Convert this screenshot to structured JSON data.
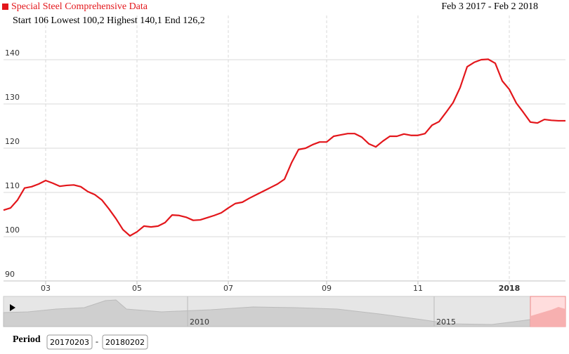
{
  "chart_data": {
    "type": "line",
    "title": "Special Steel Comprehensive Data",
    "date_range": "Feb 3 2017 - Feb 2 2018",
    "subtitle": "Start 106 Lowest 100,2 Highest 140,1 End 126,2",
    "categories": [
      null,
      null,
      null,
      null,
      null,
      null,
      "03",
      null,
      null,
      null,
      null,
      null,
      null,
      null,
      null,
      null,
      null,
      null,
      null,
      "05",
      null,
      null,
      null,
      null,
      null,
      null,
      null,
      null,
      null,
      null,
      null,
      null,
      "07",
      null,
      null,
      null,
      null,
      null,
      null,
      null,
      null,
      null,
      null,
      null,
      null,
      null,
      "09",
      null,
      null,
      null,
      null,
      null,
      null,
      null,
      null,
      null,
      null,
      null,
      null,
      "11",
      null,
      null,
      null,
      null,
      null,
      null,
      null,
      null,
      null,
      null,
      null,
      null,
      "2018",
      null,
      null,
      null,
      null,
      null,
      null,
      null,
      null
    ],
    "values": [
      106.0,
      106.5,
      108.3,
      111.0,
      111.3,
      111.9,
      112.7,
      112.1,
      111.4,
      111.6,
      111.7,
      111.3,
      110.2,
      109.5,
      108.3,
      106.3,
      104.1,
      101.6,
      100.2,
      101.1,
      102.4,
      102.2,
      102.4,
      103.2,
      104.9,
      104.8,
      104.4,
      103.7,
      103.8,
      104.3,
      104.8,
      105.4,
      106.5,
      107.5,
      107.8,
      108.7,
      109.5,
      110.3,
      111.1,
      111.9,
      113.0,
      116.7,
      119.7,
      120.0,
      120.8,
      121.4,
      121.4,
      122.7,
      123.0,
      123.3,
      123.3,
      122.5,
      121.0,
      120.3,
      121.6,
      122.7,
      122.7,
      123.2,
      122.9,
      122.9,
      123.3,
      125.2,
      126.0,
      128.1,
      130.3,
      133.7,
      138.4,
      139.4,
      140.0,
      140.1,
      139.2,
      135.2,
      133.3,
      130.2,
      128.1,
      125.9,
      125.7,
      126.5,
      126.3,
      126.2,
      126.2
    ],
    "color": "#e3161b",
    "ylim": [
      90,
      150
    ],
    "yticks": [
      90,
      100,
      110,
      120,
      130,
      140
    ],
    "grid": true,
    "navigator_ticks": [
      "2010",
      "2015"
    ],
    "period_label": "Period",
    "period_start": "20170203",
    "period_separator": "-",
    "period_end": "20180202"
  }
}
